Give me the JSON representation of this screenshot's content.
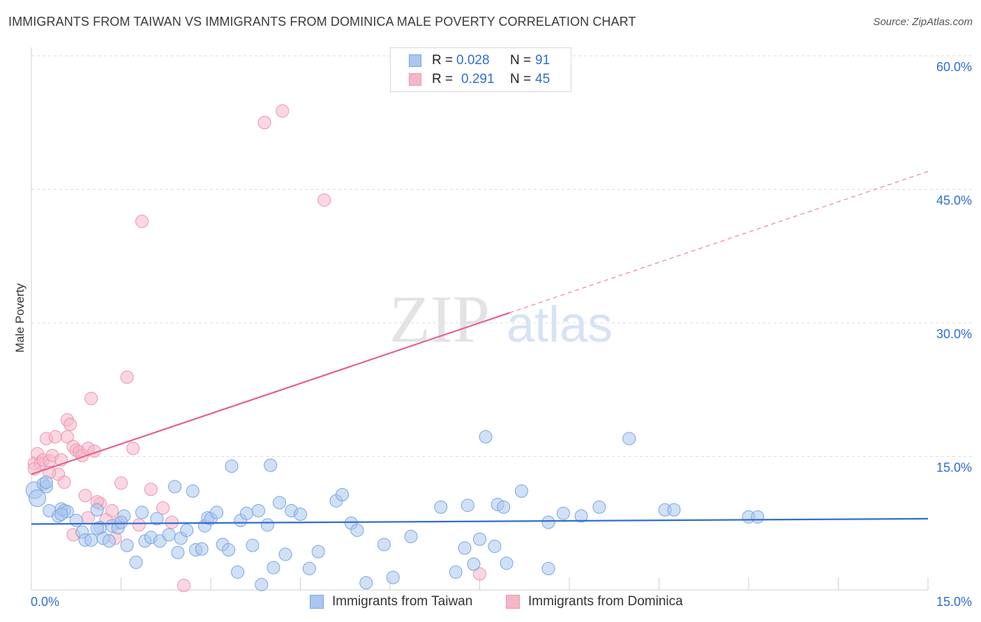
{
  "title": "IMMIGRANTS FROM TAIWAN VS IMMIGRANTS FROM DOMINICA MALE POVERTY CORRELATION CHART",
  "source": "Source: ZipAtlas.com",
  "watermark": {
    "zip": "ZIP",
    "atlas": "atlas"
  },
  "legend": {
    "r_label": "R =",
    "n_label": "N =",
    "entries": [
      {
        "r": "0.028",
        "n": "91"
      },
      {
        "r": "0.291",
        "n": "45"
      }
    ]
  },
  "colors": {
    "taiwan_fill": "#a9c7ef",
    "taiwan_stroke": "#7aa6e0",
    "taiwan_line": "#2f6fd0",
    "dominica_fill": "#f5b6c8",
    "dominica_stroke": "#ee94b0",
    "dominica_line": "#e4628c",
    "value_text": "#2f6dd0"
  },
  "chart_data": {
    "type": "scatter",
    "title": "IMMIGRANTS FROM TAIWAN VS IMMIGRANTS FROM DOMINICA MALE POVERTY CORRELATION CHART",
    "xlabel": "",
    "ylabel": "Male Poverty",
    "xlim": [
      0,
      15
    ],
    "ylim": [
      0,
      60
    ],
    "x_tick_labels": [
      "0.0%",
      "15.0%"
    ],
    "y_ticks": [
      15,
      30,
      45,
      60
    ],
    "y_tick_labels": [
      "15.0%",
      "30.0%",
      "45.0%",
      "60.0%"
    ],
    "grid": true,
    "legend_position": "top-center",
    "series": [
      {
        "name": "Immigrants from Taiwan",
        "r": 0.028,
        "n": 91,
        "trend": {
          "x": [
            0,
            15
          ],
          "y": [
            7.4,
            8.0
          ],
          "dashed_from": null
        },
        "points": [
          [
            0.05,
            11.2
          ],
          [
            0.1,
            10.3
          ],
          [
            0.2,
            11.9
          ],
          [
            0.25,
            11.6
          ],
          [
            0.3,
            8.9
          ],
          [
            0.45,
            8.3
          ],
          [
            0.5,
            9.1
          ],
          [
            0.55,
            8.9
          ],
          [
            0.6,
            8.8
          ],
          [
            0.75,
            7.8
          ],
          [
            0.85,
            6.5
          ],
          [
            0.9,
            5.6
          ],
          [
            1.0,
            5.6
          ],
          [
            1.1,
            9.0
          ],
          [
            1.15,
            7.0
          ],
          [
            1.2,
            5.8
          ],
          [
            1.3,
            5.5
          ],
          [
            1.35,
            7.2
          ],
          [
            1.45,
            7.0
          ],
          [
            1.55,
            8.3
          ],
          [
            1.6,
            5.0
          ],
          [
            1.75,
            3.1
          ],
          [
            1.85,
            8.7
          ],
          [
            1.9,
            5.5
          ],
          [
            2.0,
            5.9
          ],
          [
            2.1,
            8.0
          ],
          [
            2.15,
            5.5
          ],
          [
            2.3,
            6.2
          ],
          [
            2.4,
            11.6
          ],
          [
            2.45,
            4.2
          ],
          [
            2.5,
            5.8
          ],
          [
            2.6,
            6.7
          ],
          [
            2.7,
            11.1
          ],
          [
            2.75,
            4.5
          ],
          [
            2.85,
            4.6
          ],
          [
            2.9,
            7.2
          ],
          [
            2.95,
            8.1
          ],
          [
            3.0,
            8.0
          ],
          [
            3.1,
            8.7
          ],
          [
            3.2,
            5.1
          ],
          [
            3.3,
            4.5
          ],
          [
            3.35,
            13.9
          ],
          [
            3.45,
            2.0
          ],
          [
            3.5,
            7.8
          ],
          [
            3.6,
            8.6
          ],
          [
            3.7,
            5.0
          ],
          [
            3.8,
            8.9
          ],
          [
            3.85,
            0.6
          ],
          [
            3.95,
            7.3
          ],
          [
            4.05,
            2.5
          ],
          [
            4.15,
            9.8
          ],
          [
            4.25,
            4.0
          ],
          [
            4.35,
            8.9
          ],
          [
            4.5,
            8.5
          ],
          [
            4.65,
            2.4
          ],
          [
            4.8,
            4.3
          ],
          [
            5.1,
            10.0
          ],
          [
            5.2,
            10.7
          ],
          [
            5.35,
            7.5
          ],
          [
            5.45,
            6.7
          ],
          [
            5.6,
            0.8
          ],
          [
            5.9,
            5.1
          ],
          [
            6.05,
            1.4
          ],
          [
            6.35,
            6.0
          ],
          [
            6.85,
            9.3
          ],
          [
            7.1,
            2.0
          ],
          [
            7.25,
            4.7
          ],
          [
            7.3,
            9.5
          ],
          [
            7.4,
            2.9
          ],
          [
            7.5,
            5.7
          ],
          [
            7.6,
            17.2
          ],
          [
            7.75,
            4.9
          ],
          [
            7.8,
            9.6
          ],
          [
            7.9,
            9.3
          ],
          [
            7.95,
            3.0
          ],
          [
            8.2,
            11.1
          ],
          [
            8.65,
            2.4
          ],
          [
            8.65,
            7.6
          ],
          [
            8.9,
            8.6
          ],
          [
            9.2,
            8.3
          ],
          [
            9.5,
            9.3
          ],
          [
            10.0,
            17.0
          ],
          [
            10.6,
            9.0
          ],
          [
            10.75,
            9.0
          ],
          [
            12.0,
            8.2
          ],
          [
            12.15,
            8.2
          ],
          [
            4.0,
            14.0
          ],
          [
            0.25,
            12.1
          ],
          [
            0.5,
            8.5
          ],
          [
            1.1,
            6.9
          ],
          [
            1.5,
            7.6
          ]
        ]
      },
      {
        "name": "Immigrants from Dominica",
        "r": 0.291,
        "n": 45,
        "trend": {
          "x": [
            0,
            15
          ],
          "y": [
            13.0,
            47.0
          ],
          "dashed_from": 8.0
        },
        "points": [
          [
            0.05,
            14.2
          ],
          [
            0.1,
            15.3
          ],
          [
            0.15,
            14.2
          ],
          [
            0.2,
            14.6
          ],
          [
            0.25,
            17.0
          ],
          [
            0.3,
            14.5
          ],
          [
            0.35,
            15.1
          ],
          [
            0.4,
            17.2
          ],
          [
            0.45,
            13.0
          ],
          [
            0.5,
            14.6
          ],
          [
            0.55,
            12.1
          ],
          [
            0.6,
            17.2
          ],
          [
            0.6,
            19.1
          ],
          [
            0.65,
            18.6
          ],
          [
            0.7,
            16.1
          ],
          [
            0.75,
            15.7
          ],
          [
            0.8,
            15.5
          ],
          [
            0.85,
            15.1
          ],
          [
            0.9,
            10.6
          ],
          [
            0.95,
            15.9
          ],
          [
            1.0,
            21.5
          ],
          [
            1.05,
            15.6
          ],
          [
            1.15,
            9.7
          ],
          [
            1.25,
            7.9
          ],
          [
            1.35,
            8.9
          ],
          [
            1.4,
            5.8
          ],
          [
            1.5,
            12.0
          ],
          [
            1.6,
            23.9
          ],
          [
            1.7,
            15.9
          ],
          [
            1.8,
            7.3
          ],
          [
            1.85,
            41.4
          ],
          [
            2.0,
            11.3
          ],
          [
            2.2,
            9.2
          ],
          [
            2.35,
            7.6
          ],
          [
            3.9,
            52.5
          ],
          [
            4.2,
            53.8
          ],
          [
            4.9,
            43.8
          ],
          [
            7.5,
            1.8
          ],
          [
            0.7,
            6.2
          ],
          [
            0.95,
            8.1
          ],
          [
            1.45,
            7.5
          ],
          [
            2.55,
            0.5
          ],
          [
            0.3,
            13.2
          ],
          [
            1.1,
            9.9
          ],
          [
            0.05,
            13.6
          ]
        ]
      }
    ]
  },
  "bottom_legend": [
    "Immigrants from Taiwan",
    "Immigrants from Dominica"
  ]
}
